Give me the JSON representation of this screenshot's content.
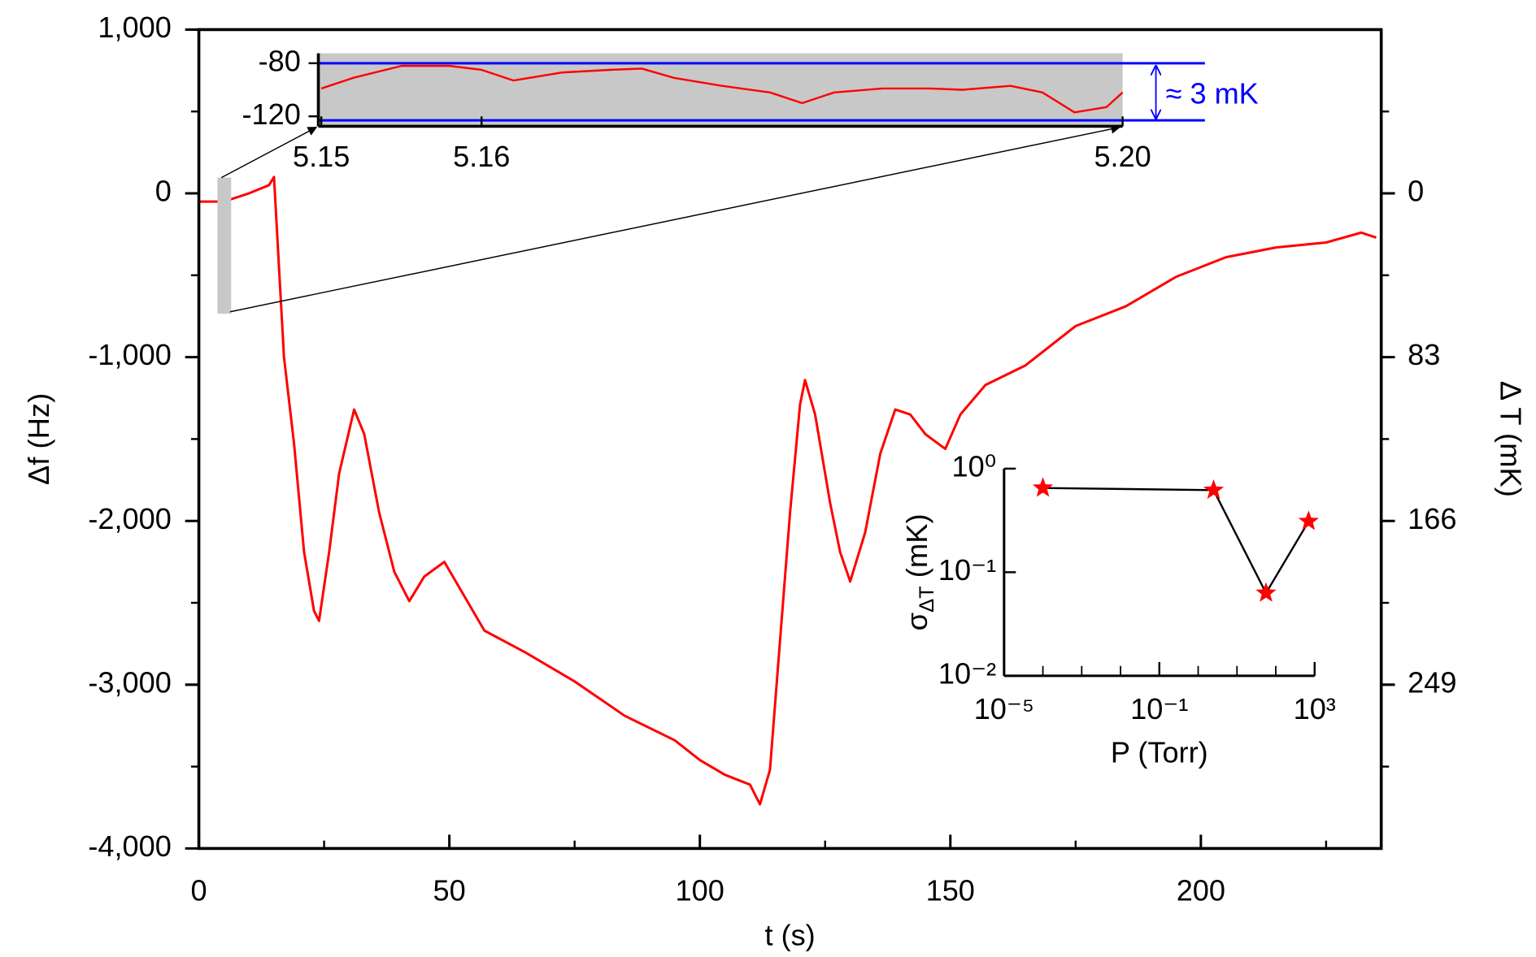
{
  "chart_data": [
    {
      "type": "line",
      "xlabel": "t (s)",
      "ylabel": "Δf (Hz)",
      "y2label": "Δ T (mK)",
      "xlim": [
        0,
        236
      ],
      "ylim": [
        -4000,
        1000
      ],
      "y2lim": [
        332,
        -83
      ],
      "xticks": [
        0,
        50,
        100,
        150,
        200
      ],
      "yticks": [
        {
          "value": 1000,
          "label": "1,000"
        },
        0,
        {
          "value": -1000,
          "label": "-1,000"
        },
        {
          "value": -2000,
          "label": "-2,000"
        },
        {
          "value": -3000,
          "label": "-3,000"
        },
        {
          "value": -4000,
          "label": "-4,000"
        }
      ],
      "y2ticks": [
        0,
        83,
        166,
        249
      ],
      "series": [
        {
          "color": "#ff0000",
          "x": [
            0,
            5,
            10,
            14,
            15,
            17,
            19,
            21,
            23,
            24,
            26,
            28,
            31,
            33,
            36,
            39,
            42,
            45,
            49,
            53,
            57,
            65,
            75,
            85,
            95,
            100,
            105,
            110,
            112,
            114,
            116,
            118,
            120,
            121,
            123,
            126,
            128,
            130,
            133,
            136,
            139,
            142,
            145,
            149,
            152,
            157,
            165,
            175,
            185,
            195,
            205,
            215,
            225,
            232,
            235
          ],
          "values": [
            -50,
            -50,
            0,
            50,
            100,
            -1000,
            -1530,
            -2190,
            -2550,
            -2610,
            -2190,
            -1710,
            -1320,
            -1470,
            -1950,
            -2310,
            -2490,
            -2340,
            -2250,
            -2460,
            -2670,
            -2800,
            -2980,
            -3190,
            -3340,
            -3460,
            -3550,
            -3610,
            -3730,
            -3520,
            -2730,
            -1950,
            -1290,
            -1140,
            -1350,
            -1890,
            -2190,
            -2370,
            -2070,
            -1590,
            -1320,
            -1350,
            -1470,
            -1560,
            -1350,
            -1170,
            -1050,
            -810,
            -690,
            -510,
            -390,
            -330,
            -300,
            -240,
            -270
          ]
        }
      ]
    },
    {
      "type": "line",
      "xlim": [
        5.15,
        5.2
      ],
      "ylim": [
        -127.5,
        -72.5
      ],
      "xticks": [
        5.15,
        5.16,
        {
          "value": 5.2,
          "label": "5.20"
        }
      ],
      "yticks": [
        -80,
        -120
      ],
      "reference_lines": [
        -80,
        -123
      ],
      "reference_color": "#0000ff",
      "annotation": "≈ 3 mK",
      "series": [
        {
          "color": "#ff0000",
          "x": [
            5.15,
            5.152,
            5.155,
            5.158,
            5.16,
            5.162,
            5.165,
            5.168,
            5.17,
            5.172,
            5.175,
            5.178,
            5.18,
            5.182,
            5.185,
            5.188,
            5.19,
            5.193,
            5.195,
            5.197,
            5.199,
            5.2
          ],
          "values": [
            -99,
            -91,
            -82,
            -82,
            -85,
            -93,
            -87,
            -85,
            -84,
            -91,
            -97,
            -102,
            -110,
            -102,
            -99,
            -99,
            -100,
            -97,
            -102,
            -117,
            -113,
            -102
          ]
        }
      ]
    },
    {
      "type": "scatter",
      "xscale": "log",
      "yscale": "log",
      "xlabel": "P (Torr)",
      "ylabel": {
        "symbol": "σ",
        "sub": "ΔT",
        "unit": " (mK)"
      },
      "xlim": [
        1e-05,
        1000
      ],
      "ylim": [
        0.01,
        1
      ],
      "xticks": [
        {
          "value": 1e-05,
          "label": "10⁻⁵"
        },
        {
          "value": 0.1,
          "label": "10⁻¹"
        },
        {
          "value": 1000,
          "label": "10³"
        }
      ],
      "yticks": [
        {
          "value": 1,
          "label": "10⁰"
        },
        {
          "value": 0.1,
          "label": "10⁻¹"
        },
        {
          "value": 0.01,
          "label": "10⁻²"
        }
      ],
      "line_color": "#000000",
      "series": [
        {
          "color": "#ff0000",
          "x": [
            0.0001,
            2.5,
            56,
            700
          ],
          "values": [
            0.65,
            0.62,
            0.063,
            0.31
          ]
        }
      ]
    }
  ]
}
